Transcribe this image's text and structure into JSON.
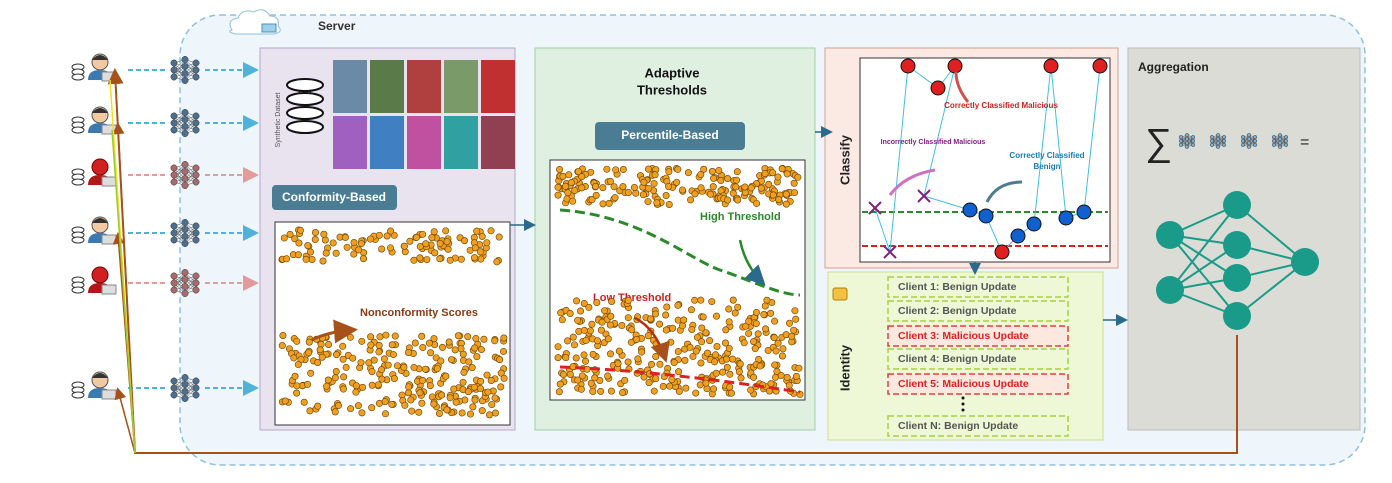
{
  "server": "Server",
  "dataset": {
    "label": "Synthetic Dataset"
  },
  "conformity": {
    "title": "Conformity-Based",
    "annotation": "Nonconformity Scores"
  },
  "thresholds": {
    "title_lines": [
      "Adaptive",
      "Thresholds"
    ],
    "method": "Percentile-Based",
    "high": "High Threshold",
    "low": "Low Threshold"
  },
  "classify": {
    "title": "Classify",
    "malicious_correct": "Correctly Classified Malicious",
    "malicious_incorrect": "Incorrectly Classified Malicious",
    "benign_correct": [
      "Correctly Classified",
      "Benign"
    ]
  },
  "identity": {
    "title": "Identity",
    "clients": [
      {
        "label": "Client 1: Benign Update",
        "malicious": false
      },
      {
        "label": "Client 2: Benign Update",
        "malicious": false
      },
      {
        "label": "Client 3: Malicious Update",
        "malicious": true
      },
      {
        "label": "Client 4: Benign Update",
        "malicious": false
      },
      {
        "label": "Client 5: Malicious Update",
        "malicious": true
      },
      {
        "label": "Client N: Benign Update",
        "malicious": false
      }
    ]
  },
  "aggregation": {
    "title": "Aggregation",
    "sum": "∑",
    "equals": "="
  }
}
